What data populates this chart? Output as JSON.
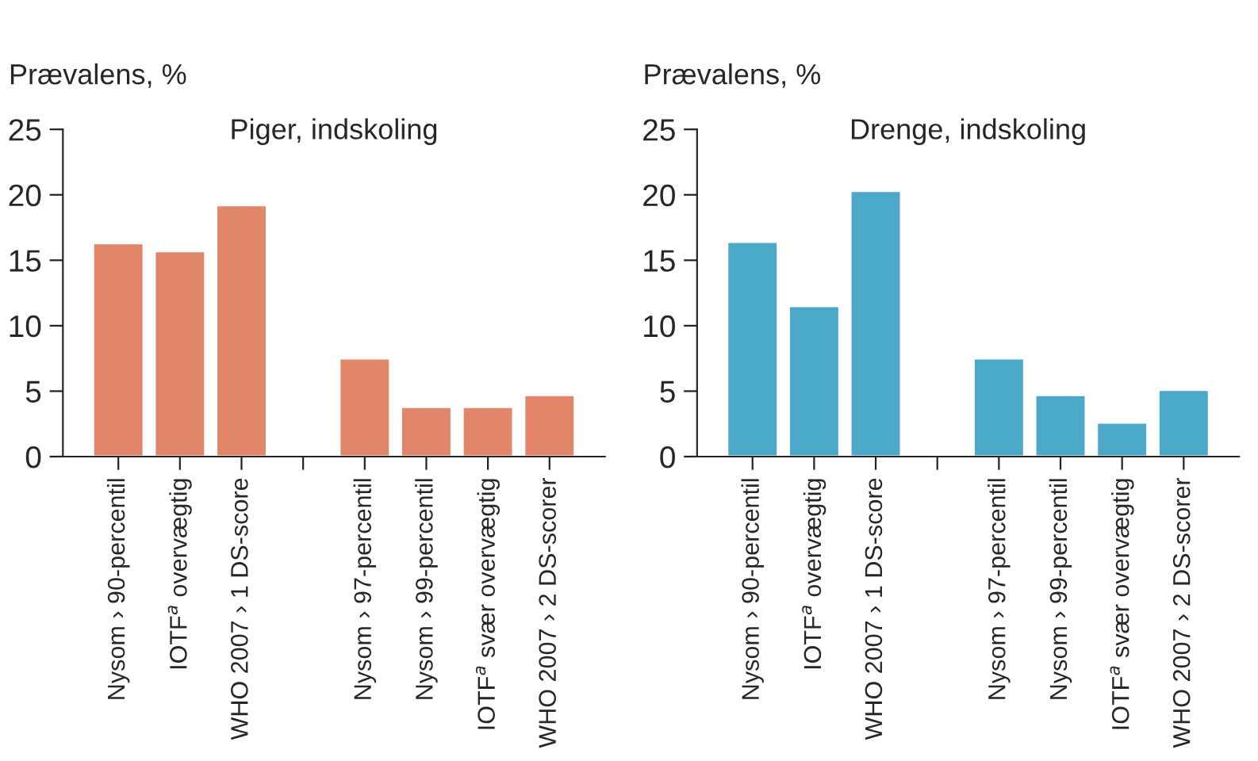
{
  "chart_data": [
    {
      "type": "bar",
      "title": "Piger, indskoling",
      "ylabel": "Prævalens, %",
      "categories": [
        "Nysom › 90-percentil",
        "IOTF$^{a}$ overvægtig",
        "WHO 2007 › 1 DS-score",
        null,
        "Nysom › 97-percentil",
        "Nysom › 99-percentil",
        "IOTF$^{a}$ svær overvægtig",
        "WHO 2007 › 2 DS-scorer"
      ],
      "values": [
        16.3,
        15.7,
        19.2,
        null,
        7.5,
        3.8,
        3.8,
        4.7
      ],
      "color": "#e2866a",
      "ylim": [
        0,
        25
      ],
      "yticks": [
        0,
        5,
        10,
        15,
        20,
        25
      ],
      "grid": false,
      "legend": false
    },
    {
      "type": "bar",
      "title": "Drenge, indskoling",
      "ylabel": "Prævalens, %",
      "categories": [
        "Nysom › 90-percentil",
        "IOTF$^{a}$ overvægtig",
        "WHO 2007 › 1 DS-score",
        null,
        "Nysom › 97-percentil",
        "Nysom › 99-percentil",
        "IOTF$^{a}$ svær overvægtig",
        "WHO 2007 › 2 DS-scorer"
      ],
      "values": [
        16.4,
        11.5,
        20.3,
        null,
        7.5,
        4.7,
        2.6,
        5.1
      ],
      "color": "#4ba8c8",
      "ylim": [
        0,
        25
      ],
      "yticks": [
        0,
        5,
        10,
        15,
        20,
        25
      ],
      "grid": false,
      "legend": false
    }
  ]
}
